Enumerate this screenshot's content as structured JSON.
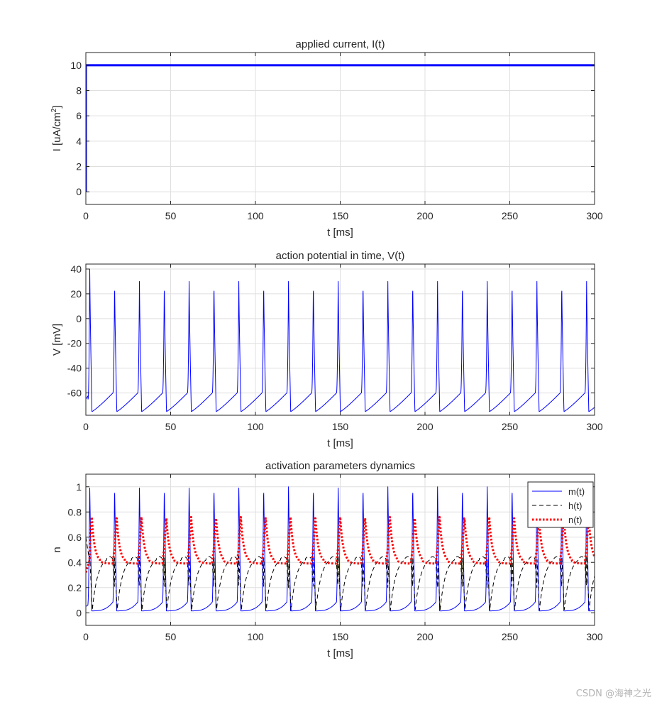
{
  "watermark": "CSDN @海神之光",
  "colors": {
    "axis": "#262626",
    "grid": "#dfdfdf",
    "blue": "#0000ff",
    "black": "#000000",
    "red": "#ff0000",
    "background": "#ffffff"
  },
  "chart_data": [
    {
      "type": "line",
      "title": "applied current, I(t)",
      "xlabel": "t [ms]",
      "ylabel": "I [uA/cm",
      "ylabel_sup": "2",
      "ylabel_end": "]",
      "xlim": [
        0,
        300
      ],
      "ylim": [
        -1,
        11
      ],
      "xticks": [
        0,
        50,
        100,
        150,
        200,
        250,
        300
      ],
      "yticks": [
        0,
        2,
        4,
        6,
        8,
        10
      ],
      "grid": true,
      "series": [
        {
          "name": "I(t)",
          "color": "#0000ff",
          "style": "solid",
          "width": "thick",
          "x": [
            0,
            0.01,
            300
          ],
          "y": [
            0,
            10,
            10
          ]
        }
      ]
    },
    {
      "type": "line",
      "title": "action potential in time, V(t)",
      "xlabel": "t [ms]",
      "ylabel": "V [mV]",
      "xlim": [
        0,
        300
      ],
      "ylim": [
        -78,
        44
      ],
      "xticks": [
        0,
        50,
        100,
        150,
        200,
        250,
        300
      ],
      "yticks": [
        -60,
        -40,
        -20,
        0,
        20,
        40
      ],
      "grid": true,
      "spike_params": {
        "period_ms": 14.65,
        "first_peak_ms": 2.3,
        "first_peak_mV": 40,
        "peak_mV": 30,
        "trough_mV": -75,
        "rest_mV": -65
      },
      "series": [
        {
          "name": "V(t)",
          "color": "#0000ff",
          "style": "solid",
          "width": "thin"
        }
      ]
    },
    {
      "type": "line",
      "title": "activation parameters dynamics",
      "xlabel": "t [ms]",
      "ylabel": "n",
      "xlim": [
        0,
        300
      ],
      "ylim": [
        -0.1,
        1.1
      ],
      "xticks": [
        0,
        50,
        100,
        150,
        200,
        250,
        300
      ],
      "yticks": [
        0,
        0.2,
        0.4,
        0.6,
        0.8,
        1
      ],
      "grid": true,
      "legend_position": "top-right",
      "series": [
        {
          "name": "m(t)",
          "color": "#0000ff",
          "style": "solid",
          "width": "thin",
          "min": 0.01,
          "max": 1.0
        },
        {
          "name": "h(t)",
          "color": "#000000",
          "style": "dashed",
          "width": "thin",
          "min": 0.02,
          "max": 0.45
        },
        {
          "name": "n(t)",
          "color": "#ff0000",
          "style": "dotted",
          "width": "thick",
          "min": 0.38,
          "max": 0.76
        }
      ]
    }
  ]
}
